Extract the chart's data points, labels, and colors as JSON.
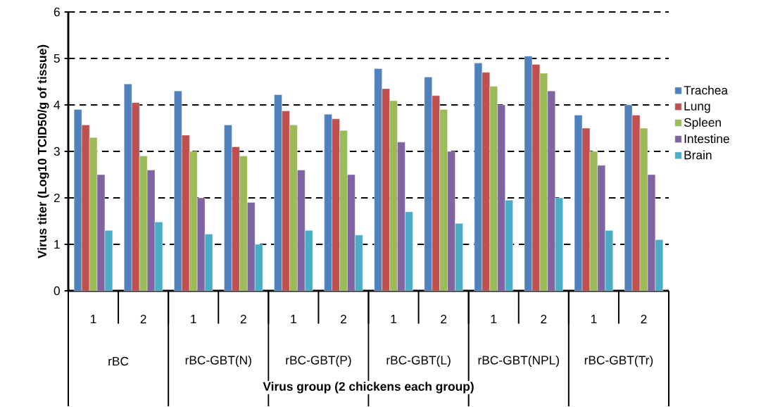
{
  "chart_data": {
    "type": "bar",
    "ylabel": "Virus titer (Log10 TCID50/g of tissue)",
    "xlabel": "Virus group (2 chickens each group)",
    "categories": [
      "1",
      "2",
      "1",
      "2",
      "1",
      "2",
      "1",
      "2",
      "1",
      "2",
      "1",
      "2"
    ],
    "annotations": [
      "rBC",
      "rBC-GBT(N)",
      "rBC-GBT(P)",
      "rBC-GBT(L)",
      "rBC-GBT(NPL)",
      "rBC-GBT(Tr)"
    ],
    "series": [
      {
        "name": "Trachea",
        "color": "#4f81bd",
        "values": [
          3.9,
          4.45,
          4.3,
          3.57,
          4.22,
          3.8,
          4.78,
          4.6,
          4.9,
          5.05,
          3.78,
          4.0
        ]
      },
      {
        "name": "Lung",
        "color": "#c0504d",
        "values": [
          3.57,
          4.05,
          3.35,
          3.1,
          3.87,
          3.7,
          4.35,
          4.2,
          4.7,
          4.87,
          3.5,
          3.78
        ]
      },
      {
        "name": "Spleen",
        "color": "#9bbb59",
        "values": [
          3.3,
          2.9,
          3.0,
          2.9,
          3.57,
          3.45,
          4.09,
          3.9,
          4.4,
          4.68,
          3.0,
          3.5
        ]
      },
      {
        "name": "Intestine",
        "color": "#8064a2",
        "values": [
          2.5,
          2.6,
          2.0,
          1.9,
          2.6,
          2.5,
          3.2,
          3.0,
          4.0,
          4.3,
          2.7,
          2.5
        ]
      },
      {
        "name": "Brain",
        "color": "#4bacc6",
        "values": [
          1.3,
          1.48,
          1.22,
          1.0,
          1.3,
          1.2,
          1.7,
          1.45,
          1.95,
          2.0,
          1.3,
          1.1
        ]
      }
    ],
    "ylim": [
      0,
      6
    ],
    "yticks": [
      0,
      1,
      2,
      3,
      4,
      5,
      6
    ],
    "grid": "y",
    "legend": "right"
  }
}
